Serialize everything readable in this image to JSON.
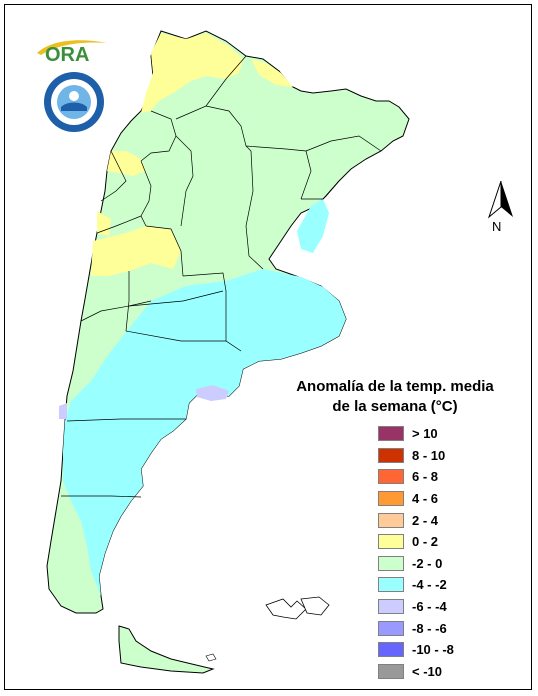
{
  "map": {
    "legend": {
      "title_line1": "Anomalía de la temp. media",
      "title_line2": "de la semana (°C)",
      "items": [
        {
          "label": "> 10",
          "color": "#993366"
        },
        {
          "label": "8 - 10",
          "color": "#cc3300"
        },
        {
          "label": "6 - 8",
          "color": "#ff6633"
        },
        {
          "label": "4 - 6",
          "color": "#ff9933"
        },
        {
          "label": "2 - 4",
          "color": "#ffcc99"
        },
        {
          "label": "0 - 2",
          "color": "#ffff99"
        },
        {
          "label": "-2 - 0",
          "color": "#ccffcc"
        },
        {
          "label": "-4 - -2",
          "color": "#99ffff"
        },
        {
          "label": "-6 - -4",
          "color": "#ccccff"
        },
        {
          "label": "-8 - -6",
          "color": "#9999ff"
        },
        {
          "label": "-10 - -8",
          "color": "#6666ff"
        },
        {
          "label": "< -10",
          "color": "#999999"
        }
      ]
    },
    "north_label": "N",
    "logos": {
      "ora_text": "ORA",
      "ora_color": "#3a8f3a",
      "smn_color": "#1d5fa8"
    },
    "colors": {
      "border": "#000000",
      "warm": "#ffff99",
      "neutral": "#ccffcc",
      "cool": "#99ffff",
      "cold": "#ccccff"
    }
  }
}
